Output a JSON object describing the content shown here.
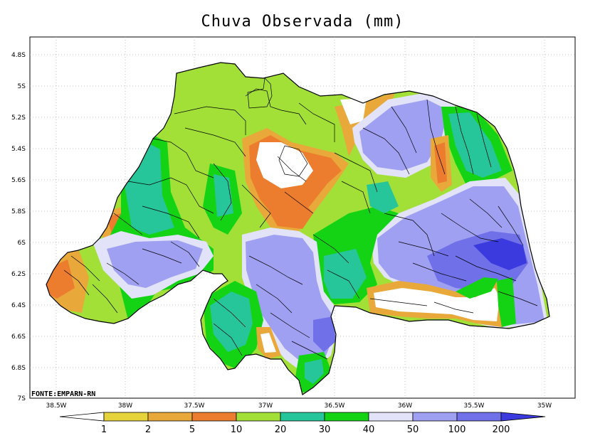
{
  "title": "Chuva Observada (mm)",
  "source": "FONTE:EMPARN-RN",
  "lat_labels": [
    "4.8S",
    "5S",
    "5.2S",
    "5.4S",
    "5.6S",
    "5.8S",
    "6S",
    "6.2S",
    "6.4S",
    "6.6S",
    "6.8S",
    "7S"
  ],
  "lon_labels": [
    "38.5W",
    "38W",
    "37.5W",
    "37W",
    "36.5W",
    "36W",
    "35.5W",
    "35W"
  ],
  "legend": {
    "labels": [
      "1",
      "2",
      "5",
      "10",
      "20",
      "30",
      "40",
      "50",
      "100",
      "200"
    ],
    "colors": [
      "#ffffff",
      "#e6d33c",
      "#e8a93a",
      "#ec7d2e",
      "#a2e038",
      "#26c59a",
      "#14d314",
      "#e2e2f8",
      "#a0a0f2",
      "#7070e8",
      "#3a3ade"
    ]
  },
  "colors": {
    "light_green": "#a2e038",
    "green": "#14d314",
    "teal": "#26c59a",
    "orange": "#ec7d2e",
    "light_orange": "#e8a93a",
    "yellow": "#e6d33c",
    "pale_blue": "#e2e2f8",
    "blue": "#a0a0f2",
    "mid_blue": "#7070e8",
    "dark_blue": "#3a3ade"
  }
}
